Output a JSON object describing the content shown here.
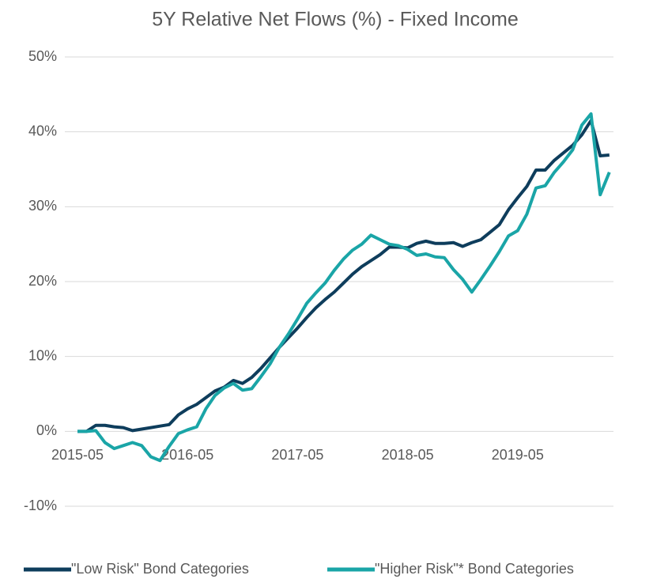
{
  "chart_data": {
    "type": "line",
    "title": "5Y Relative Net Flows (%) - Fixed Income",
    "categories": [
      "2015-05",
      null,
      null,
      null,
      null,
      null,
      null,
      null,
      null,
      null,
      null,
      null,
      "2016-05",
      null,
      null,
      null,
      null,
      null,
      null,
      null,
      null,
      null,
      null,
      null,
      "2017-05",
      null,
      null,
      null,
      null,
      null,
      null,
      null,
      null,
      null,
      null,
      null,
      "2018-05",
      null,
      null,
      null,
      null,
      null,
      null,
      null,
      null,
      null,
      null,
      null,
      "2019-05",
      null,
      null,
      null,
      null,
      null,
      null,
      null,
      null,
      null,
      null
    ],
    "series": [
      {
        "name": "\"Low Risk\" Bond Categories",
        "color": "#0e3d5c",
        "values": [
          0,
          0,
          0.8,
          0.8,
          0.6,
          0.5,
          0.1,
          0.3,
          0.5,
          0.7,
          0.9,
          2.2,
          3.0,
          3.6,
          4.5,
          5.4,
          5.9,
          6.8,
          6.4,
          7.2,
          8.4,
          9.8,
          11.2,
          12.5,
          13.8,
          15.2,
          16.5,
          17.6,
          18.6,
          19.8,
          21.0,
          22.0,
          22.8,
          23.6,
          24.6,
          24.6,
          24.5,
          25.1,
          25.4,
          25.1,
          25.1,
          25.2,
          24.7,
          25.2,
          25.6,
          26.6,
          27.6,
          29.6,
          31.2,
          32.7,
          34.9,
          34.9,
          36.2,
          37.2,
          38.2,
          39.6,
          41.5,
          36.8,
          36.9
        ]
      },
      {
        "name": "\"Higher Risk\"* Bond Categories",
        "color": "#1aa5a7",
        "values": [
          0,
          0,
          0.1,
          -1.5,
          -2.3,
          -1.9,
          -1.5,
          -1.9,
          -3.4,
          -3.9,
          -2.0,
          -0.3,
          0.2,
          0.6,
          3.0,
          4.8,
          5.8,
          6.4,
          5.5,
          5.7,
          7.3,
          9.0,
          11.2,
          13.0,
          15.0,
          17.1,
          18.5,
          19.8,
          21.5,
          23.0,
          24.2,
          25.0,
          26.2,
          25.6,
          25.0,
          24.8,
          24.3,
          23.5,
          23.7,
          23.3,
          23.2,
          21.6,
          20.3,
          18.6,
          20.3,
          22.1,
          24.0,
          26.1,
          26.8,
          29.0,
          32.5,
          32.8,
          34.6,
          36.0,
          37.6,
          40.9,
          42.4,
          31.6,
          34.6
        ]
      }
    ],
    "ylim": [
      -10,
      50
    ],
    "yticks": [
      {
        "value": -10,
        "label": "-10%"
      },
      {
        "value": 0,
        "label": "0%"
      },
      {
        "value": 10,
        "label": "10%"
      },
      {
        "value": 20,
        "label": "20%"
      },
      {
        "value": 30,
        "label": "30%"
      },
      {
        "value": 40,
        "label": "40%"
      },
      {
        "value": 50,
        "label": "50%"
      }
    ],
    "grid": true,
    "legend": "bottom"
  }
}
